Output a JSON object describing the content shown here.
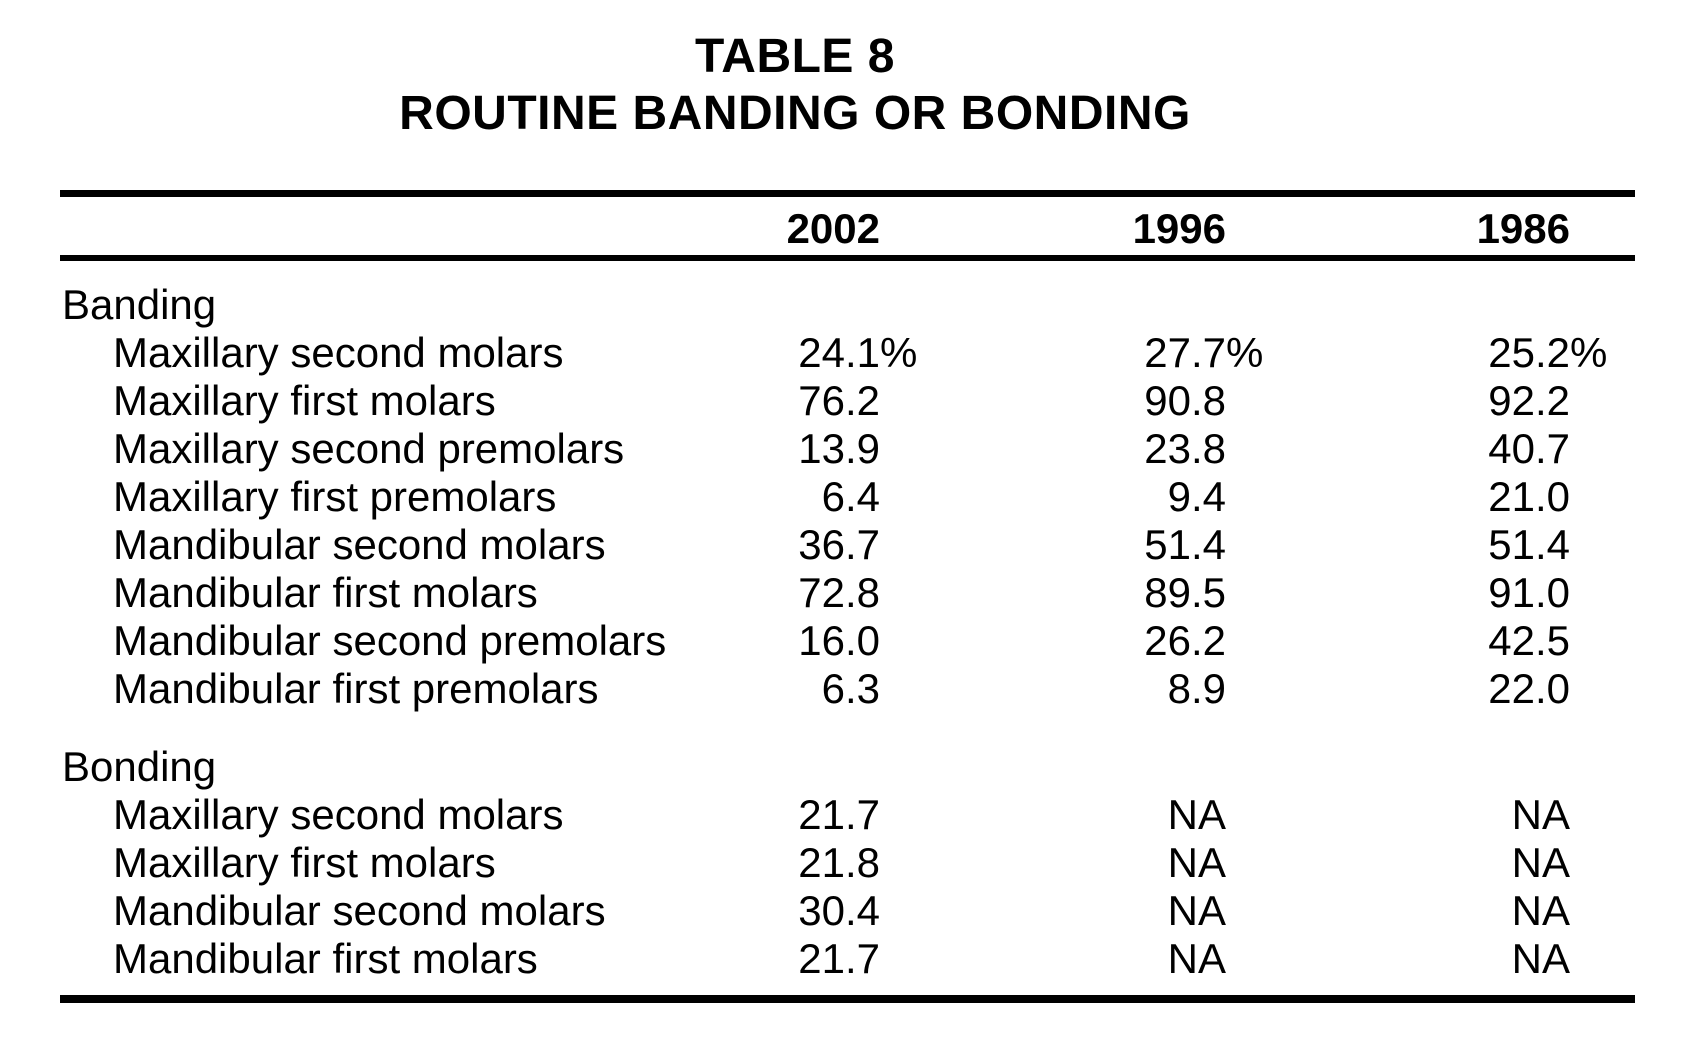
{
  "title": {
    "line1": "TABLE 8",
    "line2": "ROUTINE BANDING OR BONDING"
  },
  "columns": [
    "2002",
    "1996",
    "1986"
  ],
  "sections": [
    {
      "label": "Banding",
      "rows": [
        {
          "label": "Maxillary second molars",
          "v": [
            "24.1",
            "27.7",
            "25.2"
          ],
          "s": [
            "%",
            "%",
            "%"
          ]
        },
        {
          "label": "Maxillary first molars",
          "v": [
            "76.2",
            "90.8",
            "92.2"
          ],
          "s": [
            "",
            "",
            ""
          ]
        },
        {
          "label": "Maxillary second premolars",
          "v": [
            "13.9",
            "23.8",
            "40.7"
          ],
          "s": [
            "",
            "",
            ""
          ]
        },
        {
          "label": "Maxillary first premolars",
          "v": [
            "6.4",
            "9.4",
            "21.0"
          ],
          "s": [
            "",
            "",
            ""
          ]
        },
        {
          "label": "Mandibular second molars",
          "v": [
            "36.7",
            "51.4",
            "51.4"
          ],
          "s": [
            "",
            "",
            ""
          ]
        },
        {
          "label": "Mandibular first molars",
          "v": [
            "72.8",
            "89.5",
            "91.0"
          ],
          "s": [
            "",
            "",
            ""
          ]
        },
        {
          "label": "Mandibular second premolars",
          "v": [
            "16.0",
            "26.2",
            "42.5"
          ],
          "s": [
            "",
            "",
            ""
          ]
        },
        {
          "label": "Mandibular first premolars",
          "v": [
            "6.3",
            "8.9",
            "22.0"
          ],
          "s": [
            "",
            "",
            ""
          ]
        }
      ]
    },
    {
      "label": "Bonding",
      "rows": [
        {
          "label": "Maxillary second molars",
          "v": [
            "21.7",
            "NA",
            "NA"
          ],
          "s": [
            "",
            "",
            ""
          ]
        },
        {
          "label": "Maxillary first molars",
          "v": [
            "21.8",
            "NA",
            "NA"
          ],
          "s": [
            "",
            "",
            ""
          ]
        },
        {
          "label": "Mandibular second molars",
          "v": [
            "30.4",
            "NA",
            "NA"
          ],
          "s": [
            "",
            "",
            ""
          ]
        },
        {
          "label": "Mandibular first molars",
          "v": [
            "21.7",
            "NA",
            "NA"
          ],
          "s": [
            "",
            "",
            ""
          ]
        }
      ]
    }
  ],
  "chart_data": {
    "type": "table",
    "title": "TABLE 8 ROUTINE BANDING OR BONDING",
    "columns": [
      "",
      "2002",
      "1996",
      "1986"
    ],
    "rows": [
      [
        "Banding",
        "",
        "",
        ""
      ],
      [
        "Maxillary second molars",
        "24.1%",
        "27.7%",
        "25.2%"
      ],
      [
        "Maxillary first molars",
        "76.2",
        "90.8",
        "92.2"
      ],
      [
        "Maxillary second premolars",
        "13.9",
        "23.8",
        "40.7"
      ],
      [
        "Maxillary first premolars",
        "6.4",
        "9.4",
        "21.0"
      ],
      [
        "Mandibular second molars",
        "36.7",
        "51.4",
        "51.4"
      ],
      [
        "Mandibular first molars",
        "72.8",
        "89.5",
        "91.0"
      ],
      [
        "Mandibular second premolars",
        "16.0",
        "26.2",
        "42.5"
      ],
      [
        "Mandibular first premolars",
        "6.3",
        "8.9",
        "22.0"
      ],
      [
        "Bonding",
        "",
        "",
        ""
      ],
      [
        "Maxillary second molars",
        "21.7",
        "NA",
        "NA"
      ],
      [
        "Maxillary first molars",
        "21.8",
        "NA",
        "NA"
      ],
      [
        "Mandibular second molars",
        "30.4",
        "NA",
        "NA"
      ],
      [
        "Mandibular first molars",
        "21.7",
        "NA",
        "NA"
      ]
    ]
  }
}
